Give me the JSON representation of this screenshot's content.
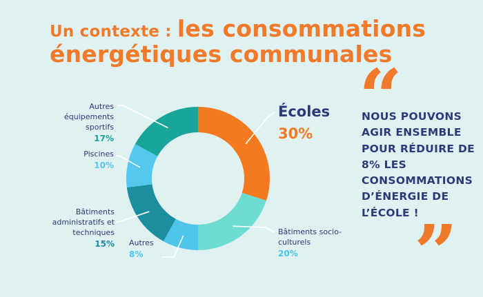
{
  "title": {
    "prefix": "Un contexte : ",
    "highlight": "les consommations",
    "line2": "énergétiques communales"
  },
  "quote": {
    "open_mark": "“",
    "close_mark": "”",
    "text": "NOUS POUVONS AGIR ENSEMBLE POUR RÉDUIRE DE 8% LES CONSOMMATIONS D’ÉNERGIE DE L’ÉCOLE !"
  },
  "chart_data": {
    "type": "pie",
    "donut": true,
    "categories": [
      "Écoles",
      "Bâtiments socio-culturels",
      "Autres",
      "Bâtiments administratifs et techniques",
      "Piscines",
      "Autres équipements sportifs"
    ],
    "values": [
      30,
      20,
      8,
      15,
      10,
      17
    ],
    "value_labels": [
      "30%",
      "20%",
      "8%",
      "15%",
      "10%",
      "17%"
    ],
    "colors": [
      "#f47a20",
      "#6cddd0",
      "#4ec5ea",
      "#1b8fa0",
      "#55c8ee",
      "#1aa59b"
    ],
    "label_colors": [
      "#f47a20",
      "#4ec5ea",
      "#4ec5ea",
      "#1b8fa0",
      "#4ec5ea",
      "#1aa59b"
    ]
  }
}
